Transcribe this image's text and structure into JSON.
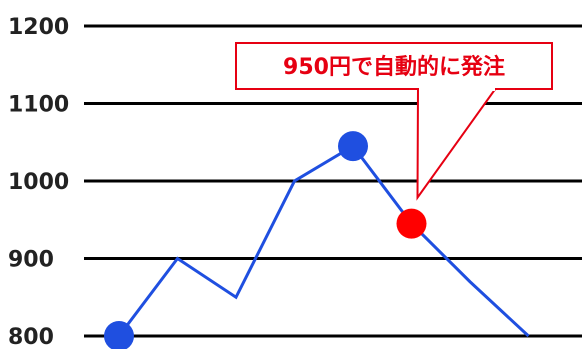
{
  "chart_data": {
    "type": "line",
    "title": "",
    "xlabel": "",
    "ylabel": "",
    "ylim": [
      800,
      1200
    ],
    "yticks": [
      800,
      900,
      1000,
      1100,
      1200
    ],
    "ytick_labels": [
      "800",
      "900",
      "1000",
      "1100",
      "1200"
    ],
    "grid": true,
    "x": [
      1,
      2,
      3,
      4,
      5,
      6,
      7,
      8
    ],
    "series": [
      {
        "values": [
          800,
          900,
          850,
          1000,
          1045,
          945,
          870,
          800
        ],
        "color": "#1f4fe0"
      }
    ],
    "markers": [
      {
        "index": 0,
        "color": "#1f4fe0"
      },
      {
        "index": 4,
        "color": "#1f4fe0"
      },
      {
        "index": 5,
        "color": "#ff0000"
      }
    ],
    "annotation": {
      "text": "950円で自動的に発注",
      "color": "#e60012",
      "target_index": 5
    }
  }
}
